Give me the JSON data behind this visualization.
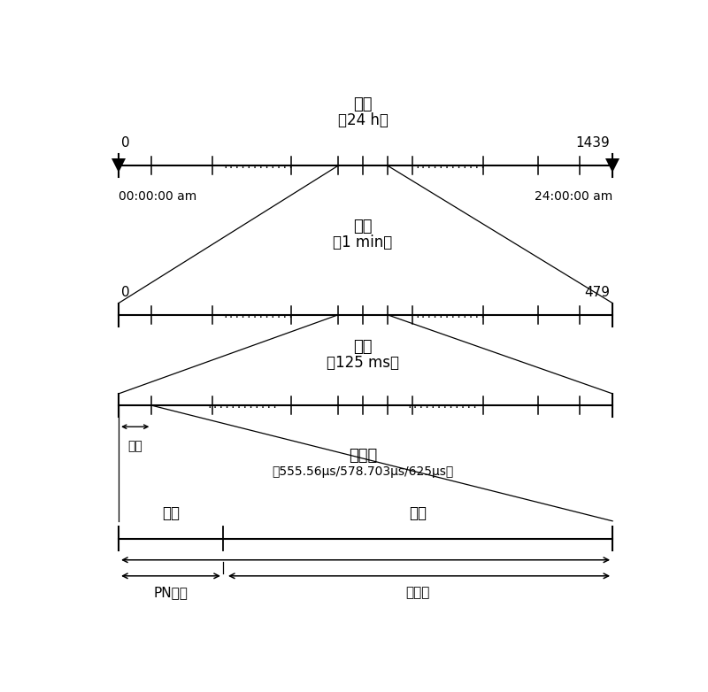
{
  "bg_color": "#ffffff",
  "text_color": "#000000",
  "line_color": "#000000",
  "row1_label": "日帧",
  "row1_sublabel": "（24 h）",
  "row1_left_num": "0",
  "row1_right_num": "1439",
  "row1_left_time": "00:00:00 am",
  "row1_right_time": "24:00:00 am",
  "row2_label": "分帧",
  "row2_sublabel": "（1 min）",
  "row2_left_num": "0",
  "row2_right_num": "479",
  "row3_label": "超帧",
  "row3_sublabel": "（125 ms）",
  "row3_firstframe_label": "首帧",
  "row4_label": "信号帧",
  "row4_sublabel": "（555.56μs/578.703μs/625μs）",
  "row4_header_label": "帧头",
  "row4_body_label": "帧体",
  "row4_pn_label": "PN序列",
  "row4_data_label": "数据块"
}
